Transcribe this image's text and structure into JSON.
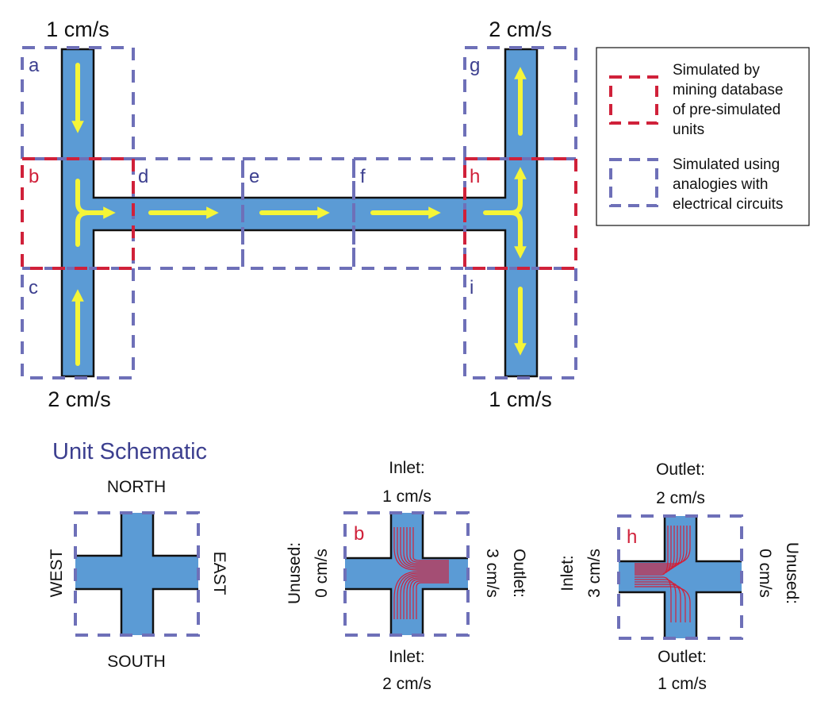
{
  "colors": {
    "channel": "#5B9BD5",
    "arrow": "#F5F538",
    "mined_box": "#D0213A",
    "circuit_box": "#6E70B8",
    "streamline": "#D0213A",
    "title": "#3C3F8F"
  },
  "network": {
    "flows": {
      "top_left": "1 cm/s",
      "bottom_left": "2 cm/s",
      "top_right": "2 cm/s",
      "bottom_right": "1 cm/s"
    },
    "units": {
      "a": "a",
      "b": "b",
      "c": "c",
      "d": "d",
      "e": "e",
      "f": "f",
      "g": "g",
      "h": "h",
      "i": "i"
    }
  },
  "legend": {
    "mined": [
      "Simulated by",
      "mining database",
      "of pre-simulated",
      "units"
    ],
    "circuit": [
      "Simulated using",
      "analogies with",
      "electrical circuits"
    ]
  },
  "schematic": {
    "title": "Unit Schematic",
    "north": "NORTH",
    "south": "SOUTH",
    "west": "WEST",
    "east": "EAST"
  },
  "unit_b": {
    "label": "b",
    "north": [
      "Inlet:",
      "1 cm/s"
    ],
    "south": [
      "Inlet:",
      "2 cm/s"
    ],
    "west": [
      "Unused:",
      "0 cm/s"
    ],
    "east": [
      "Outlet:",
      "3 cm/s"
    ]
  },
  "unit_h": {
    "label": "h",
    "north": [
      "Outlet:",
      "2 cm/s"
    ],
    "south": [
      "Outlet:",
      "1 cm/s"
    ],
    "west": [
      "Inlet:",
      "3 cm/s"
    ],
    "east": [
      "Unused:",
      "0 cm/s"
    ]
  }
}
